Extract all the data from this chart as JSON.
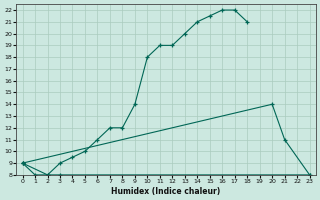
{
  "xlabel": "Humidex (Indice chaleur)",
  "bg_color": "#cce8e0",
  "grid_color": "#aaccbe",
  "line_color": "#006655",
  "xlim": [
    -0.5,
    23.5
  ],
  "ylim": [
    8,
    22.5
  ],
  "yticks": [
    8,
    9,
    10,
    11,
    12,
    13,
    14,
    15,
    16,
    17,
    18,
    19,
    20,
    21,
    22
  ],
  "xticks": [
    0,
    1,
    2,
    3,
    4,
    5,
    6,
    7,
    8,
    9,
    10,
    11,
    12,
    13,
    14,
    15,
    16,
    17,
    18,
    19,
    20,
    21,
    22,
    23
  ],
  "line1_x": [
    0,
    1,
    2,
    3,
    4,
    5,
    6,
    7,
    8,
    9,
    10,
    11,
    12,
    13,
    14,
    15,
    16,
    17,
    18
  ],
  "line1_y": [
    9,
    8,
    8,
    9,
    9.5,
    10,
    11,
    12,
    12,
    14,
    18,
    19,
    19,
    20,
    21,
    21.5,
    22,
    22,
    21
  ],
  "line2_x": [
    0,
    20,
    21,
    23
  ],
  "line2_y": [
    9,
    14,
    11,
    8
  ],
  "line3_x": [
    0,
    2,
    3,
    23
  ],
  "line3_y": [
    9,
    8,
    8,
    8
  ]
}
